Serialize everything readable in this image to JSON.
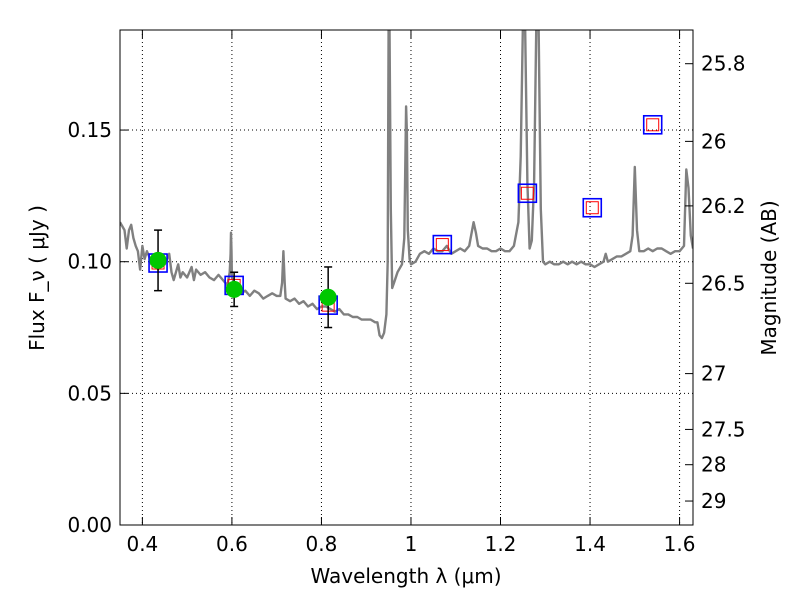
{
  "chart_data": {
    "type": "line",
    "xlabel": "Wavelength  λ (μm)",
    "ylabel": "Flux  F_ν  ( μJy )",
    "ylabel_right": "Magnitude (AB)",
    "xlim": [
      0.35,
      1.63
    ],
    "ylim": [
      0.0,
      0.188
    ],
    "grid": true,
    "x_ticks": [
      0.4,
      0.6,
      0.8,
      1.0,
      1.2,
      1.4,
      1.6
    ],
    "x_tick_labels": [
      "0.4",
      "0.6",
      "0.8",
      "1",
      "1.2",
      "1.4",
      "1.6"
    ],
    "y_ticks": [
      0.0,
      0.05,
      0.1,
      0.15
    ],
    "y_tick_labels": [
      "0.00",
      "0.05",
      "0.10",
      "0.15"
    ],
    "right_ticks": [
      {
        "label": "25.8",
        "flux": 0.1752
      },
      {
        "label": "26",
        "flux": 0.1457
      },
      {
        "label": "26.2",
        "flux": 0.1212
      },
      {
        "label": "26.5",
        "flux": 0.0918
      },
      {
        "label": "27",
        "flux": 0.0575
      },
      {
        "label": "27.5",
        "flux": 0.0363
      },
      {
        "label": "28",
        "flux": 0.0229
      },
      {
        "label": "29",
        "flux": 0.0091
      }
    ],
    "colors": {
      "template": "#808080",
      "observed": "#00c800",
      "model_box": "#0000ff",
      "model_inner": "#ff0000",
      "errorbar": "#000000",
      "grid": "#000000"
    },
    "series": [
      {
        "kind": "template-spectrum",
        "points": [
          [
            0.35,
            0.115
          ],
          [
            0.36,
            0.112
          ],
          [
            0.365,
            0.105
          ],
          [
            0.37,
            0.112
          ],
          [
            0.375,
            0.114
          ],
          [
            0.38,
            0.109
          ],
          [
            0.385,
            0.106
          ],
          [
            0.39,
            0.104
          ],
          [
            0.395,
            0.097
          ],
          [
            0.4,
            0.106
          ],
          [
            0.405,
            0.101
          ],
          [
            0.41,
            0.104
          ],
          [
            0.415,
            0.102
          ],
          [
            0.42,
            0.099
          ],
          [
            0.43,
            0.101
          ],
          [
            0.435,
            0.097
          ],
          [
            0.44,
            0.101
          ],
          [
            0.45,
            0.099
          ],
          [
            0.46,
            0.103
          ],
          [
            0.465,
            0.096
          ],
          [
            0.47,
            0.093
          ],
          [
            0.48,
            0.099
          ],
          [
            0.485,
            0.094
          ],
          [
            0.49,
            0.096
          ],
          [
            0.5,
            0.094
          ],
          [
            0.51,
            0.098
          ],
          [
            0.515,
            0.093
          ],
          [
            0.52,
            0.097
          ],
          [
            0.53,
            0.095
          ],
          [
            0.54,
            0.096
          ],
          [
            0.55,
            0.094
          ],
          [
            0.56,
            0.093
          ],
          [
            0.57,
            0.095
          ],
          [
            0.58,
            0.093
          ],
          [
            0.59,
            0.091
          ],
          [
            0.595,
            0.096
          ],
          [
            0.597,
            0.103
          ],
          [
            0.598,
            0.111
          ],
          [
            0.599,
            0.104
          ],
          [
            0.6,
            0.094
          ],
          [
            0.605,
            0.092
          ],
          [
            0.61,
            0.09
          ],
          [
            0.62,
            0.088
          ],
          [
            0.63,
            0.089
          ],
          [
            0.64,
            0.087
          ],
          [
            0.65,
            0.089
          ],
          [
            0.66,
            0.088
          ],
          [
            0.67,
            0.086
          ],
          [
            0.68,
            0.087
          ],
          [
            0.69,
            0.088
          ],
          [
            0.7,
            0.087
          ],
          [
            0.708,
            0.087
          ],
          [
            0.712,
            0.092
          ],
          [
            0.715,
            0.104
          ],
          [
            0.718,
            0.092
          ],
          [
            0.72,
            0.086
          ],
          [
            0.73,
            0.085
          ],
          [
            0.74,
            0.086
          ],
          [
            0.75,
            0.084
          ],
          [
            0.76,
            0.085
          ],
          [
            0.77,
            0.083
          ],
          [
            0.78,
            0.084
          ],
          [
            0.79,
            0.082
          ],
          [
            0.8,
            0.083
          ],
          [
            0.81,
            0.083
          ],
          [
            0.82,
            0.082
          ],
          [
            0.83,
            0.081
          ],
          [
            0.84,
            0.082
          ],
          [
            0.85,
            0.08
          ],
          [
            0.86,
            0.08
          ],
          [
            0.87,
            0.079
          ],
          [
            0.88,
            0.079
          ],
          [
            0.89,
            0.078
          ],
          [
            0.9,
            0.078
          ],
          [
            0.91,
            0.078
          ],
          [
            0.92,
            0.077
          ],
          [
            0.925,
            0.077
          ],
          [
            0.93,
            0.072
          ],
          [
            0.935,
            0.071
          ],
          [
            0.94,
            0.073
          ],
          [
            0.945,
            0.08
          ],
          [
            0.948,
            0.1
          ],
          [
            0.95,
            0.19
          ],
          [
            0.952,
            0.19
          ],
          [
            0.955,
            0.12
          ],
          [
            0.958,
            0.09
          ],
          [
            0.962,
            0.092
          ],
          [
            0.97,
            0.096
          ],
          [
            0.98,
            0.099
          ],
          [
            0.985,
            0.109
          ],
          [
            0.989,
            0.159
          ],
          [
            0.991,
            0.149
          ],
          [
            0.993,
            0.112
          ],
          [
            0.997,
            0.101
          ],
          [
            1.0,
            0.099
          ],
          [
            1.01,
            0.1
          ],
          [
            1.02,
            0.103
          ],
          [
            1.03,
            0.104
          ],
          [
            1.04,
            0.103
          ],
          [
            1.05,
            0.105
          ],
          [
            1.06,
            0.104
          ],
          [
            1.07,
            0.104
          ],
          [
            1.08,
            0.106
          ],
          [
            1.09,
            0.103
          ],
          [
            1.1,
            0.104
          ],
          [
            1.11,
            0.105
          ],
          [
            1.12,
            0.104
          ],
          [
            1.13,
            0.106
          ],
          [
            1.14,
            0.115
          ],
          [
            1.145,
            0.111
          ],
          [
            1.15,
            0.106
          ],
          [
            1.16,
            0.105
          ],
          [
            1.17,
            0.105
          ],
          [
            1.18,
            0.104
          ],
          [
            1.19,
            0.104
          ],
          [
            1.2,
            0.105
          ],
          [
            1.21,
            0.104
          ],
          [
            1.22,
            0.104
          ],
          [
            1.23,
            0.106
          ],
          [
            1.24,
            0.115
          ],
          [
            1.245,
            0.14
          ],
          [
            1.25,
            0.19
          ],
          [
            1.255,
            0.19
          ],
          [
            1.26,
            0.13
          ],
          [
            1.265,
            0.105
          ],
          [
            1.27,
            0.108
          ],
          [
            1.275,
            0.13
          ],
          [
            1.28,
            0.19
          ],
          [
            1.285,
            0.19
          ],
          [
            1.29,
            0.12
          ],
          [
            1.295,
            0.1
          ],
          [
            1.3,
            0.099
          ],
          [
            1.31,
            0.1
          ],
          [
            1.32,
            0.099
          ],
          [
            1.33,
            0.099
          ],
          [
            1.34,
            0.1
          ],
          [
            1.35,
            0.099
          ],
          [
            1.36,
            0.1
          ],
          [
            1.37,
            0.099
          ],
          [
            1.38,
            0.1
          ],
          [
            1.39,
            0.099
          ],
          [
            1.4,
            0.099
          ],
          [
            1.41,
            0.098
          ],
          [
            1.42,
            0.099
          ],
          [
            1.43,
            0.1
          ],
          [
            1.435,
            0.103
          ],
          [
            1.44,
            0.1
          ],
          [
            1.45,
            0.101
          ],
          [
            1.46,
            0.102
          ],
          [
            1.47,
            0.102
          ],
          [
            1.48,
            0.103
          ],
          [
            1.49,
            0.104
          ],
          [
            1.495,
            0.11
          ],
          [
            1.5,
            0.136
          ],
          [
            1.505,
            0.112
          ],
          [
            1.51,
            0.104
          ],
          [
            1.52,
            0.104
          ],
          [
            1.53,
            0.105
          ],
          [
            1.54,
            0.104
          ],
          [
            1.55,
            0.105
          ],
          [
            1.56,
            0.105
          ],
          [
            1.57,
            0.104
          ],
          [
            1.58,
            0.103
          ],
          [
            1.59,
            0.104
          ],
          [
            1.6,
            0.104
          ],
          [
            1.61,
            0.106
          ],
          [
            1.615,
            0.135
          ],
          [
            1.62,
            0.128
          ],
          [
            1.625,
            0.11
          ],
          [
            1.63,
            0.105
          ]
        ]
      },
      {
        "kind": "observed-photometry",
        "points": [
          {
            "x": 0.435,
            "y": 0.1005,
            "err": 0.0115
          },
          {
            "x": 0.605,
            "y": 0.0895,
            "err": 0.0065
          },
          {
            "x": 0.815,
            "y": 0.0865,
            "err": 0.0115
          }
        ]
      },
      {
        "kind": "model-photometry",
        "points": [
          {
            "x": 0.435,
            "y": 0.0995
          },
          {
            "x": 0.605,
            "y": 0.091
          },
          {
            "x": 0.815,
            "y": 0.0835
          },
          {
            "x": 1.07,
            "y": 0.1065
          },
          {
            "x": 1.26,
            "y": 0.126
          },
          {
            "x": 1.405,
            "y": 0.1205
          },
          {
            "x": 1.54,
            "y": 0.152
          }
        ]
      }
    ]
  }
}
